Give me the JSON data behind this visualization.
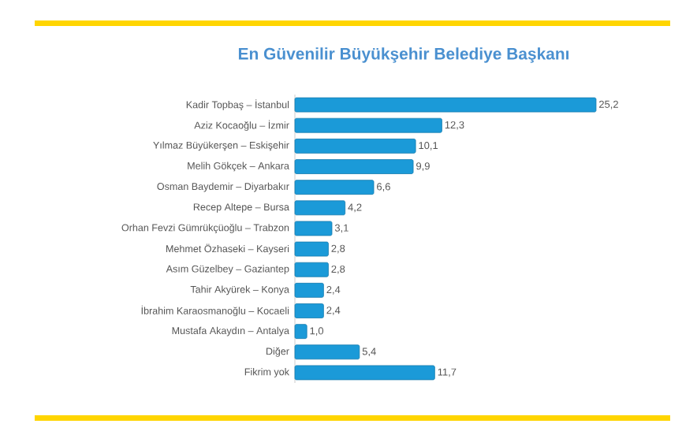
{
  "chart_data": {
    "type": "bar",
    "orientation": "horizontal",
    "title": "En Güvenilir Büyükşehir Belediye Başkanı",
    "categories": [
      "Kadir Topbaş – İstanbul",
      "Aziz Kocaoğlu – İzmir",
      "Yılmaz Büyükerşen – Eskişehir",
      "Melih Gökçek – Ankara",
      "Osman Baydemir – Diyarbakır",
      "Recep Altepe – Bursa",
      "Orhan Fevzi Gümrükçüoğlu – Trabzon",
      "Mehmet Özhaseki – Kayseri",
      "Asım Güzelbey – Gaziantep",
      "Tahir Akyürek – Konya",
      "İbrahim Karaosmanoğlu – Kocaeli",
      "Mustafa Akaydın – Antalya",
      "Diğer",
      "Fikrim yok"
    ],
    "values": [
      25.2,
      12.3,
      10.1,
      9.9,
      6.6,
      4.2,
      3.1,
      2.8,
      2.8,
      2.4,
      2.4,
      1.0,
      5.4,
      11.7
    ],
    "value_labels": [
      "25,2",
      "12,3",
      "10,1",
      "9,9",
      "6,6",
      "4,2",
      "3,1",
      "2,8",
      "2,8",
      "2,4",
      "2,4",
      "1,0",
      "5,4",
      "11,7"
    ],
    "color": "#1b9ad8"
  }
}
